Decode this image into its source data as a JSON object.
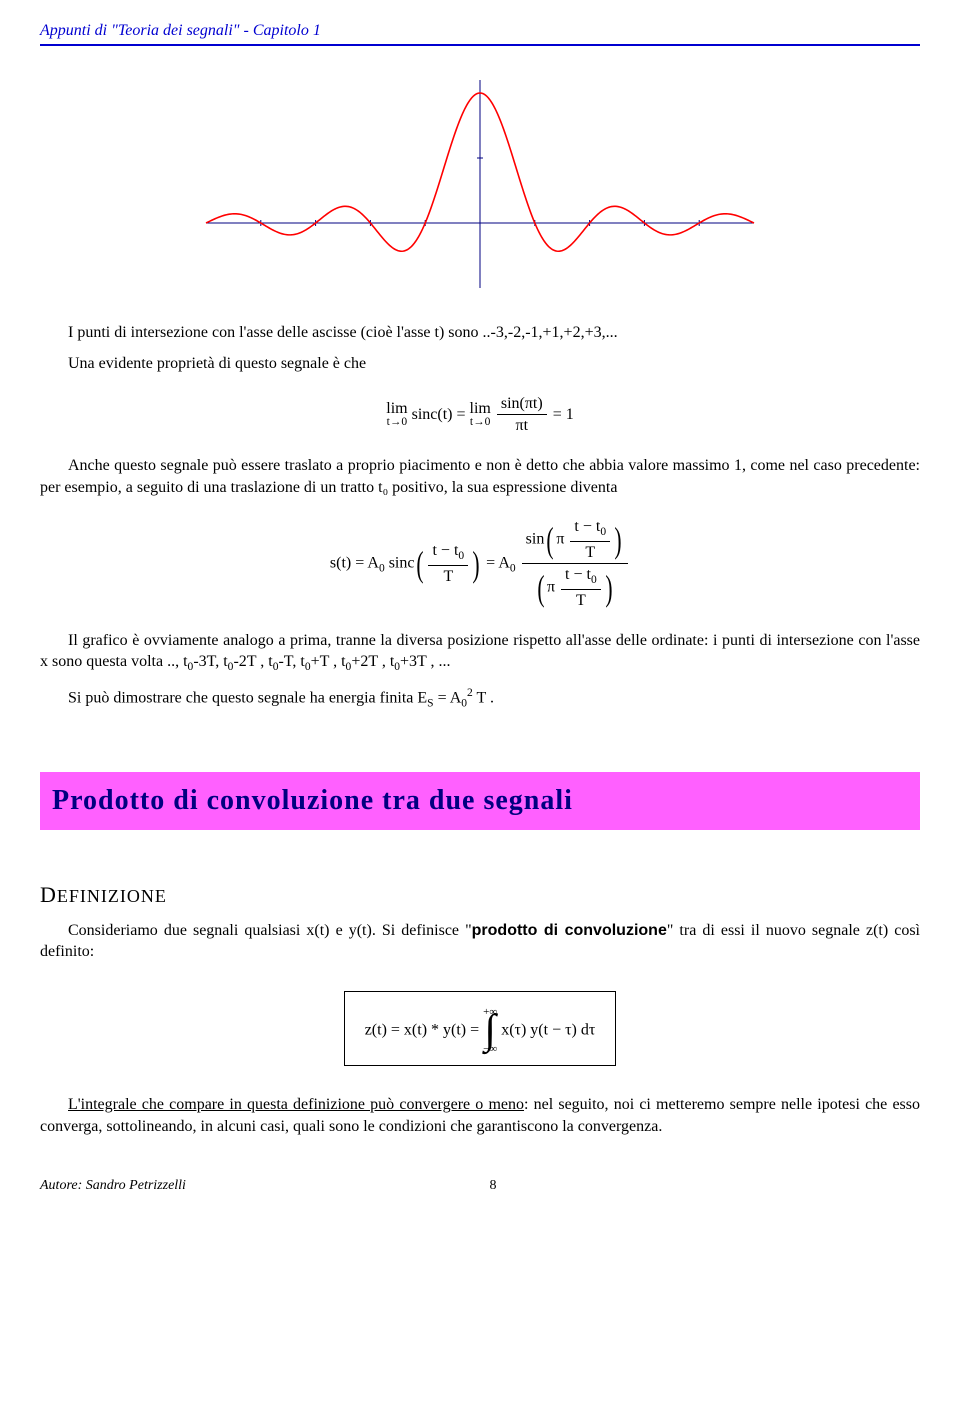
{
  "header": {
    "text": "Appunti di \"Teoria dei segnali\" - Capitolo 1"
  },
  "sinc_chart": {
    "type": "line",
    "curve_color": "#ff0000",
    "axis_color": "#000080",
    "background": "#ffffff",
    "xrange": [
      -5,
      5
    ],
    "yrange": [
      -1.0,
      2.2
    ],
    "curve_width": 1.6,
    "axis_width": 1,
    "xticks": [
      -4,
      -3,
      -2,
      -1,
      0,
      1,
      2,
      3,
      4
    ],
    "samples": 400
  },
  "paragraphs": {
    "p1a": "I punti di intersezione con l'asse delle ascisse (cioè l'asse t) sono ..-3,-2,-1,+1,+2,+3,...",
    "p1b": "Una evidente proprietà di questo segnale è che",
    "eq1_html": "<span class=\"lim-block\"><span class=\"lim-top\">lim</span><span class=\"lim-bot\">t→0</span></span> sinc(t) = <span class=\"lim-block\"><span class=\"lim-top\">lim</span><span class=\"lim-bot\">t→0</span></span> <span class=\"frac\"><span class=\"num\">sin(πt)</span><span class=\"den\">πt</span></span> = 1",
    "p2": "Anche questo segnale può essere traslato a proprio piacimento e non è detto che abbia valore massimo 1, come nel caso precedente: per esempio, a seguito di una traslazione di un tratto t₀ positivo, la sua espressione diventa",
    "eq2_html": "s(t) = A<span class=\"sub\">0</span> sinc<span class=\"bigparen\">(</span><span class=\"frac\"><span class=\"num\">t − t<span class=\"sub\">0</span></span><span class=\"den\">T</span></span><span class=\"bigparen\">)</span> = A<span class=\"sub\">0</span> <span class=\"frac\"><span class=\"num\">sin<span class=\"bigparen\">(</span>π <span class=\"frac\"><span class=\"num\">t − t<span class=\"sub\">0</span></span><span class=\"den\">T</span></span><span class=\"bigparen\">)</span></span><span class=\"den\"><span class=\"bigparen\">(</span>π <span class=\"frac\"><span class=\"num\">t − t<span class=\"sub\">0</span></span><span class=\"den\">T</span></span><span class=\"bigparen\">)</span></span></span>",
    "p3_html": "Il grafico è ovviamente analogo a prima, tranne la diversa posizione rispetto all'asse delle ordinate: i punti di intersezione con l'asse x sono questa volta .., t<span class=\"sub\">0</span>-3T, t<span class=\"sub\">0</span>-2T , t<span class=\"sub\">0</span>-T, t<span class=\"sub\">0</span>+T , t<span class=\"sub\">0</span>+2T , t<span class=\"sub\">0</span>+3T , ...",
    "p4_html": "Si può dimostrare che questo segnale ha energia finita E<span class=\"sub\">S</span> = A<span class=\"sub\">0</span><span class=\"sup\">2</span> T .",
    "section_title": "Prodotto di convoluzione tra due segnali",
    "subhead_html": "D<span class=\"smallcaps\">EFINIZIONE</span>",
    "p5_html": "Consideriamo due segnali qualsiasi x(t) e y(t). Si definisce \"<span class=\"bold-sans\">prodotto di convoluzione</span>\" tra di essi il nuovo segnale z(t) così definito:",
    "eq3_html": "z(t) = x(t) * y(t) = <span class=\"int-bounds\" style=\"text-align:center;\"><span style=\"display:block;\">+∞</span><span class=\"integral\">∫</span><span style=\"display:block;\">−∞</span></span> x(τ) y(t − τ) dτ",
    "p6_html": "<span class=\"underline\">L'integrale che compare in questa definizione può convergere o meno</span>: nel seguito, noi ci metteremo sempre nelle ipotesi che esso converga, sottolineando, in alcuni casi, quali sono le condizioni che garantiscono la convergenza."
  },
  "footer": {
    "author": "Autore: Sandro Petrizzelli",
    "page": "8"
  }
}
